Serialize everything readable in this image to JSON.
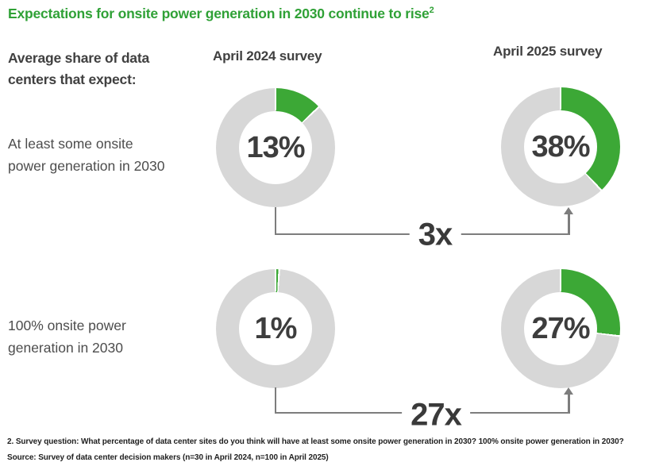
{
  "title": {
    "text": "Expectations for onsite power generation in 2030 continue to rise",
    "superscript": "2"
  },
  "colors": {
    "title_green": "#2fa136",
    "green": "#3ca836",
    "ring_gray": "#d7d7d7",
    "connector_gray": "#7d7d7d",
    "dark_text": "#404040"
  },
  "header": {
    "intro": "Average share of data centers that expect:",
    "col_2024": "April 2024 survey",
    "col_2025": "April 2025 survey"
  },
  "rows": [
    {
      "label": "At least some onsite power generation in 2030",
      "april2024": {
        "value": 13,
        "display": "13%"
      },
      "april2025": {
        "value": 38,
        "display": "38%"
      },
      "multiplier": "3x"
    },
    {
      "label": "100% onsite power generation in 2030",
      "april2024": {
        "value": 1,
        "display": "1%"
      },
      "april2025": {
        "value": 27,
        "display": "27%"
      },
      "multiplier": "27x"
    }
  ],
  "footnotes": [
    "2. Survey question: What percentage of data center sites do you think will have at least some onsite power generation in 2030? 100% onsite power generation in 2030?",
    "Source: Survey of data center decision makers (n=30 in April 2024, n=100 in April 2025)"
  ],
  "chart_data": {
    "type": "pie",
    "subtype": "donut-grid",
    "title": "Expectations for onsite power generation in 2030 continue to rise",
    "units": "share of data centers (%)",
    "categories": [
      "April 2024 survey",
      "April 2025 survey"
    ],
    "series": [
      {
        "name": "At least some onsite power generation in 2030",
        "values": [
          13,
          38
        ],
        "change_multiplier": "3x"
      },
      {
        "name": "100% onsite power generation in 2030",
        "values": [
          1,
          27
        ],
        "change_multiplier": "27x"
      }
    ],
    "segment_colors": {
      "filled": "#3ca836",
      "remainder": "#d7d7d7"
    },
    "legend": "none",
    "annotations": [
      "3x increase from 13% to 38%",
      "27x increase from 1% to 27%"
    ]
  }
}
